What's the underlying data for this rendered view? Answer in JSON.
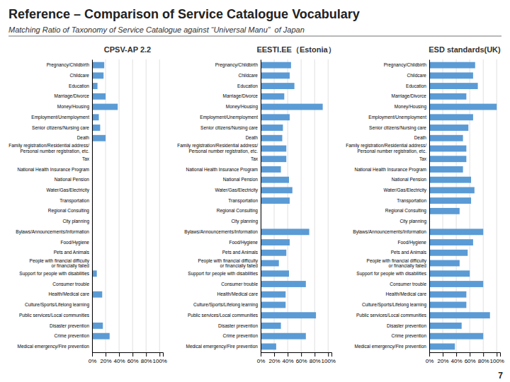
{
  "title": "Reference – Comparison of Service Catalogue Vocabulary",
  "subtitle": "Matching Ratio of Taxonomy of Service Catalogue against “Universal Manu”  of Japan",
  "annotations": [
    "7"
  ],
  "chart_data": [
    {
      "type": "bar",
      "orientation": "horizontal",
      "title": "CPSV-AP 2.2",
      "categories": [
        "Pregnancy/Childbirth",
        "Childcare",
        "Education",
        "Marriage/Divorce",
        "Money/Housing",
        "Employment/Unemployment",
        "Senior citizens/Nursing care",
        "Death",
        "Family registration/Residential address/\nPersonal number registration, etc.",
        "Tax",
        "National Health Insurance Program",
        "National Pension",
        "Water/Gas/Electricity",
        "Transportation",
        "Regional Consulting",
        "City planning",
        "Bylaws/Announcements/Information",
        "Food/Hygiene",
        "Pets and Animals",
        "People with financial difficulty\nor financially failed",
        "Support for people with disabilities",
        "Consumer trouble",
        "Health/Medical care",
        "Culture/Sports/Lifelong learning",
        "Public services/Local communities",
        "Disaster prevention",
        "Crime prevention",
        "Medical emergency/Fire prevention"
      ],
      "values": [
        0.18,
        0.17,
        0.08,
        0.2,
        0.38,
        0.1,
        0.12,
        0.2,
        0.0,
        0.0,
        0.0,
        0.0,
        0.0,
        0.0,
        0.0,
        0.0,
        0.0,
        0.0,
        0.0,
        0.0,
        0.07,
        0.0,
        0.15,
        0.0,
        0.0,
        0.16,
        0.26,
        0.0
      ],
      "color": "#5b9bd5",
      "xlim": [
        0,
        1.05
      ],
      "xticks": [
        {
          "value": 0.0,
          "label": "0%"
        },
        {
          "value": 0.2,
          "label": "20%"
        },
        {
          "value": 0.4,
          "label": "40%"
        },
        {
          "value": 0.6,
          "label": "60%"
        },
        {
          "value": 0.8,
          "label": "80%"
        },
        {
          "value": 1.0,
          "label": "100%"
        }
      ],
      "grid": true
    },
    {
      "type": "bar",
      "orientation": "horizontal",
      "title": "EESTI.EE（Estonia）",
      "categories": [
        "Pregnancy/Childbirth",
        "Childcare",
        "Education",
        "Marriage/Divorce",
        "Money/Housing",
        "Employment/Unemployment",
        "Senior citizens/Nursing care",
        "Death",
        "Family registration/Residential address/\nPersonal number registration, etc.",
        "Tax",
        "National Health Insurance Program",
        "National Pension",
        "Water/Gas/Electricity",
        "Transportation",
        "Regional Consulting",
        "City planning",
        "Bylaws/Announcements/Information",
        "Food/Hygiene",
        "Pets and Animals",
        "People with financial difficulty\nor financially failed",
        "Support for people with disabilities",
        "Consumer trouble",
        "Health/Medical care",
        "Culture/Sports/Lifelong learning",
        "Public services/Local communities",
        "Disaster prevention",
        "Crime prevention",
        "Medical emergency/Fire prevention"
      ],
      "values": [
        0.45,
        0.43,
        0.5,
        0.35,
        0.92,
        0.43,
        0.33,
        0.32,
        0.38,
        0.38,
        0.3,
        0.42,
        0.47,
        0.43,
        0.0,
        0.0,
        0.72,
        0.43,
        0.38,
        0.27,
        0.42,
        0.67,
        0.37,
        0.37,
        0.82,
        0.3,
        0.67,
        0.23
      ],
      "color": "#5b9bd5",
      "xlim": [
        0,
        1.05
      ],
      "xticks": [
        {
          "value": 0.0,
          "label": "0%"
        },
        {
          "value": 0.2,
          "label": "20%"
        },
        {
          "value": 0.4,
          "label": "40%"
        },
        {
          "value": 0.6,
          "label": "60%"
        },
        {
          "value": 0.8,
          "label": "80%"
        },
        {
          "value": 1.0,
          "label": "100%"
        }
      ],
      "grid": true
    },
    {
      "type": "bar",
      "orientation": "horizontal",
      "title": "ESD standards(UK)",
      "categories": [
        "Pregnancy/Childbirth",
        "Childcare",
        "Education",
        "Marriage/Divorce",
        "Money/Housing",
        "Employment/Unemployment",
        "Senior citizens/Nursing care",
        "Death",
        "Family registration/Residential address/\nPersonal number registration, etc.",
        "Tax",
        "National Health Insurance Program",
        "National Pension",
        "Water/Gas/Electricity",
        "Transportation",
        "Regional Consulting",
        "City planning",
        "Bylaws/Announcements/Information",
        "Food/Hygiene",
        "Pets and Animals",
        "People with financial difficulty\nor financially failed",
        "Support for people with disabilities",
        "Consumer trouble",
        "Health/Medical care",
        "Culture/Sports/Lifelong learning",
        "Public services/Local communities",
        "Disaster prevention",
        "Crime prevention",
        "Medical emergency/Fire prevention"
      ],
      "values": [
        0.68,
        0.65,
        0.72,
        0.55,
        1.0,
        0.65,
        0.58,
        0.5,
        0.55,
        0.55,
        0.5,
        0.62,
        0.67,
        0.62,
        0.45,
        0.0,
        0.8,
        0.65,
        0.57,
        0.45,
        0.6,
        0.8,
        0.55,
        0.55,
        0.9,
        0.48,
        0.8,
        0.38
      ],
      "color": "#5b9bd5",
      "xlim": [
        0,
        1.05
      ],
      "xticks": [
        {
          "value": 0.0,
          "label": "0%"
        },
        {
          "value": 0.2,
          "label": "20%"
        },
        {
          "value": 0.4,
          "label": "40%"
        },
        {
          "value": 0.6,
          "label": "60%"
        },
        {
          "value": 0.8,
          "label": "80%"
        },
        {
          "value": 1.0,
          "label": "100%"
        }
      ],
      "grid": true
    }
  ]
}
